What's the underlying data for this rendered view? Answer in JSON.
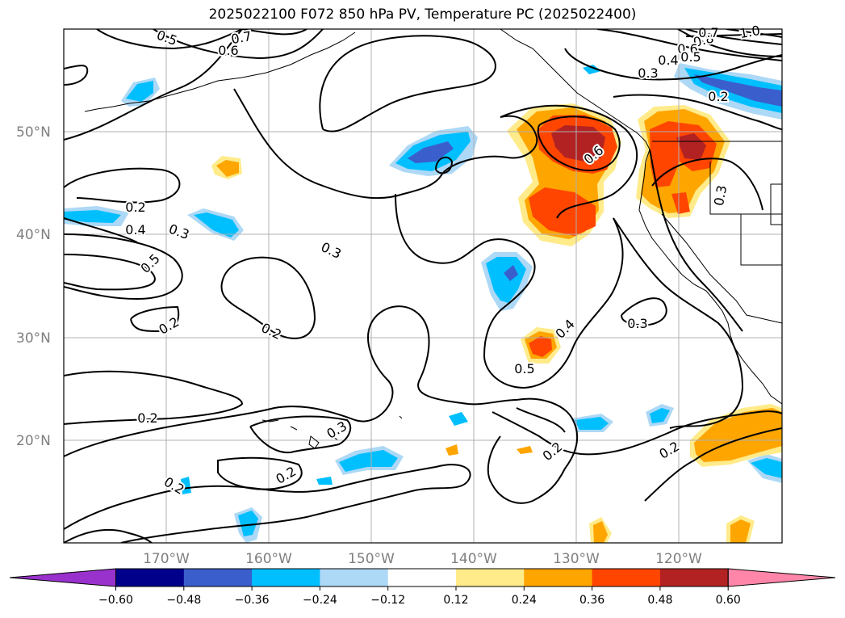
{
  "title": "2025022100 F072 850 hPa PV, Temperature PC (2025022400)",
  "lat_labels": [
    "50°N",
    "40°N",
    "30°N",
    "20°N"
  ],
  "lon_labels": [
    "170°W",
    "160°W",
    "150°W",
    "140°W",
    "130°W",
    "120°W"
  ],
  "colorbar": {
    "ticks": [
      "−0.60",
      "−0.48",
      "−0.36",
      "−0.24",
      "−0.12",
      "0.12",
      "0.24",
      "0.36",
      "0.48",
      "0.60"
    ],
    "colors": [
      "#9932cc",
      "#00008b",
      "#3a5fcd",
      "#00bfff",
      "#add8f6",
      "#ffffff",
      "#ffeb8a",
      "#ffa500",
      "#ff4500",
      "#b22222",
      "#ff86a8"
    ]
  },
  "contour_labels": [
    "0.5",
    "0.7",
    "0.6",
    "1.0",
    "0.8",
    "0.7",
    "0.6",
    "0.5",
    "0.4",
    "0.3",
    "0.2",
    "0.6",
    "0.2",
    "0.4",
    "0.3",
    "0.5",
    "0.3",
    "0.2",
    "0.2",
    "0.3",
    "0.4",
    "0.5",
    "0.3",
    "0.2",
    "0.3",
    "0.2",
    "0.2",
    "0.2",
    "0.2"
  ]
}
